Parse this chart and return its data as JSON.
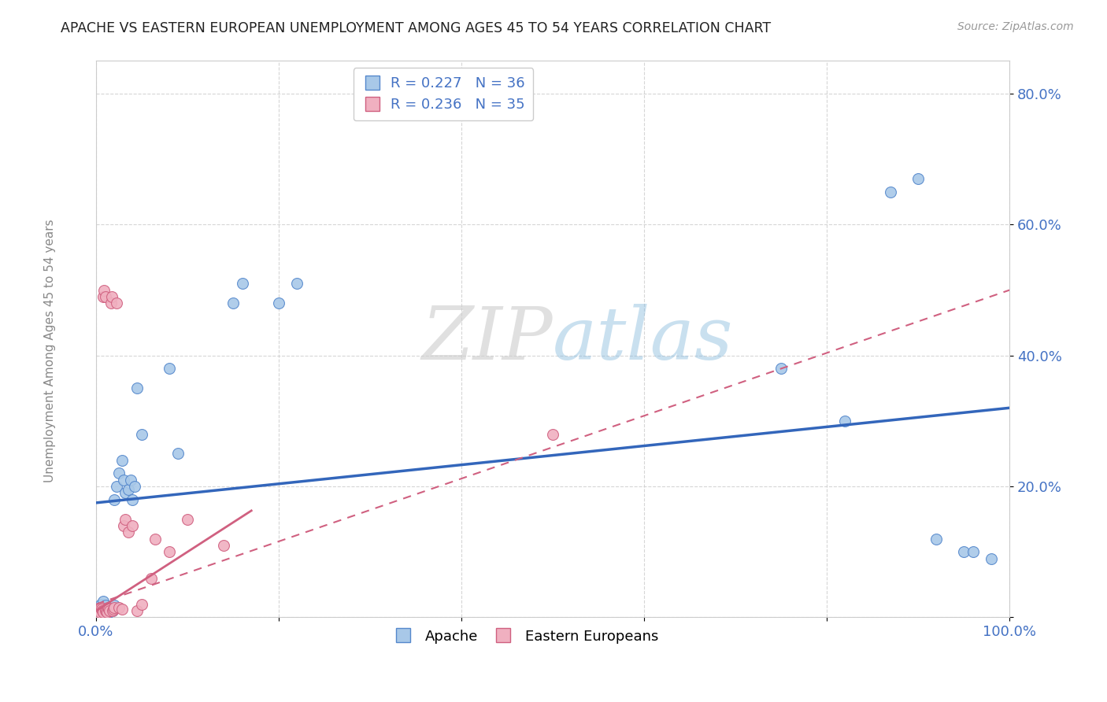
{
  "title": "APACHE VS EASTERN EUROPEAN UNEMPLOYMENT AMONG AGES 45 TO 54 YEARS CORRELATION CHART",
  "source": "Source: ZipAtlas.com",
  "ylabel": "Unemployment Among Ages 45 to 54 years",
  "xlim": [
    0,
    1.0
  ],
  "ylim": [
    0,
    0.85
  ],
  "apache_R": 0.227,
  "apache_N": 36,
  "eastern_R": 0.236,
  "eastern_N": 35,
  "apache_color": "#a8c8e8",
  "apache_edge": "#5588cc",
  "eastern_color": "#f0b0c0",
  "eastern_edge": "#d06080",
  "apache_line_color": "#3366bb",
  "eastern_line_color": "#d06080",
  "background_color": "#ffffff",
  "apache_x": [
    0.005,
    0.007,
    0.008,
    0.009,
    0.01,
    0.012,
    0.014,
    0.015,
    0.018,
    0.02,
    0.02,
    0.022,
    0.025,
    0.028,
    0.03,
    0.032,
    0.035,
    0.038,
    0.04,
    0.042,
    0.045,
    0.05,
    0.08,
    0.09,
    0.2,
    0.22,
    0.15,
    0.16,
    0.75,
    0.82,
    0.87,
    0.9,
    0.92,
    0.95,
    0.96,
    0.98
  ],
  "apache_y": [
    0.02,
    0.015,
    0.025,
    0.01,
    0.018,
    0.005,
    0.008,
    0.012,
    0.01,
    0.018,
    0.18,
    0.2,
    0.22,
    0.24,
    0.21,
    0.19,
    0.195,
    0.21,
    0.18,
    0.2,
    0.35,
    0.28,
    0.38,
    0.25,
    0.48,
    0.51,
    0.48,
    0.51,
    0.38,
    0.3,
    0.65,
    0.67,
    0.12,
    0.1,
    0.1,
    0.09
  ],
  "eastern_x": [
    0.003,
    0.004,
    0.005,
    0.006,
    0.007,
    0.008,
    0.008,
    0.009,
    0.01,
    0.01,
    0.011,
    0.012,
    0.013,
    0.014,
    0.015,
    0.016,
    0.017,
    0.018,
    0.019,
    0.02,
    0.022,
    0.025,
    0.028,
    0.03,
    0.032,
    0.035,
    0.04,
    0.045,
    0.05,
    0.06,
    0.065,
    0.08,
    0.1,
    0.14,
    0.5
  ],
  "eastern_y": [
    0.01,
    0.008,
    0.015,
    0.012,
    0.01,
    0.008,
    0.49,
    0.5,
    0.01,
    0.49,
    0.01,
    0.008,
    0.015,
    0.012,
    0.01,
    0.48,
    0.49,
    0.01,
    0.012,
    0.015,
    0.48,
    0.015,
    0.012,
    0.14,
    0.15,
    0.13,
    0.14,
    0.01,
    0.02,
    0.06,
    0.12,
    0.1,
    0.15,
    0.11,
    0.28
  ]
}
